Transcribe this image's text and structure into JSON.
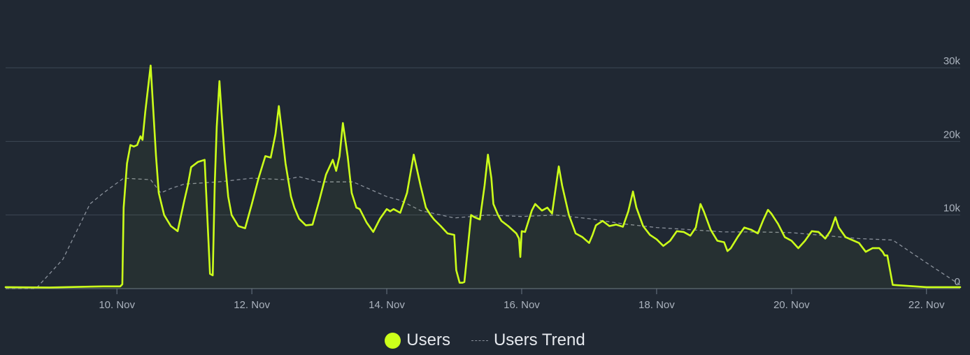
{
  "chart_data": {
    "type": "line",
    "title": "",
    "xlabel": "",
    "ylabel": "",
    "ylim": [
      0,
      30000
    ],
    "y_ticks": [
      {
        "value": 0,
        "label": "0"
      },
      {
        "value": 10000,
        "label": "10k"
      },
      {
        "value": 20000,
        "label": "20k"
      },
      {
        "value": 30000,
        "label": "30k"
      }
    ],
    "x_range_days": [
      8.35,
      22.5
    ],
    "x_ticks": [
      {
        "value": 10,
        "label": "10. Nov"
      },
      {
        "value": 12,
        "label": "12. Nov"
      },
      {
        "value": 14,
        "label": "14. Nov"
      },
      {
        "value": 16,
        "label": "16. Nov"
      },
      {
        "value": 18,
        "label": "18. Nov"
      },
      {
        "value": 20,
        "label": "20. Nov"
      },
      {
        "value": 22,
        "label": "22. Nov"
      }
    ],
    "grid": true,
    "legend_placement": "bottom-center",
    "colors": {
      "users": "#ccff1a",
      "trend": "#8a919b",
      "grid": "#3d4755",
      "axis": "#6b7785"
    },
    "series": [
      {
        "name": "Users",
        "style": "solid",
        "x": [
          8.35,
          9.0,
          9.8,
          10.05,
          10.08,
          10.1,
          10.15,
          10.2,
          10.25,
          10.3,
          10.35,
          10.38,
          10.42,
          10.5,
          10.58,
          10.62,
          10.7,
          10.8,
          10.9,
          11.0,
          11.05,
          11.1,
          11.2,
          11.3,
          11.38,
          11.42,
          11.45,
          11.48,
          11.52,
          11.55,
          11.6,
          11.65,
          11.7,
          11.8,
          11.9,
          12.0,
          12.1,
          12.2,
          12.28,
          12.35,
          12.4,
          12.45,
          12.5,
          12.58,
          12.63,
          12.7,
          12.8,
          12.9,
          13.0,
          13.1,
          13.2,
          13.25,
          13.3,
          13.35,
          13.42,
          13.48,
          13.55,
          13.6,
          13.7,
          13.8,
          13.9,
          14.0,
          14.05,
          14.1,
          14.2,
          14.3,
          14.4,
          14.5,
          14.58,
          14.65,
          14.7,
          14.8,
          14.9,
          15.0,
          15.03,
          15.08,
          15.12,
          15.15,
          15.25,
          15.3,
          15.38,
          15.45,
          15.5,
          15.55,
          15.58,
          15.65,
          15.7,
          15.8,
          15.92,
          15.96,
          15.98,
          16.0,
          16.05,
          16.15,
          16.2,
          16.3,
          16.38,
          16.45,
          16.55,
          16.6,
          16.7,
          16.8,
          16.9,
          17.0,
          17.05,
          17.1,
          17.2,
          17.3,
          17.4,
          17.5,
          17.58,
          17.65,
          17.7,
          17.8,
          17.9,
          18.0,
          18.1,
          18.2,
          18.3,
          18.4,
          18.5,
          18.58,
          18.65,
          18.7,
          18.8,
          18.9,
          19.0,
          19.05,
          19.1,
          19.2,
          19.3,
          19.4,
          19.5,
          19.58,
          19.65,
          19.7,
          19.8,
          19.9,
          20.0,
          20.1,
          20.2,
          20.3,
          20.4,
          20.5,
          20.58,
          20.65,
          20.7,
          20.8,
          20.9,
          21.0,
          21.1,
          21.2,
          21.3,
          21.35,
          21.38,
          21.42,
          21.5,
          22.0,
          22.5
        ],
        "values": [
          200,
          150,
          300,
          300,
          600,
          11000,
          17000,
          19500,
          19300,
          19500,
          20700,
          20200,
          24000,
          30300,
          18000,
          13000,
          10000,
          8500,
          7800,
          12000,
          14000,
          16500,
          17200,
          17500,
          2000,
          1800,
          14000,
          22000,
          28200,
          24000,
          17500,
          12500,
          10000,
          8500,
          8200,
          11500,
          15000,
          18000,
          17800,
          21000,
          24800,
          21000,
          17000,
          12500,
          11000,
          9500,
          8600,
          8700,
          12000,
          15500,
          17500,
          16000,
          18000,
          22500,
          18000,
          13000,
          11000,
          10800,
          9000,
          7700,
          9500,
          10800,
          10500,
          10800,
          10300,
          13000,
          18200,
          14000,
          11000,
          10000,
          9400,
          8500,
          7500,
          7300,
          2500,
          800,
          800,
          900,
          10000,
          9700,
          9400,
          14000,
          18200,
          15000,
          11500,
          10000,
          9200,
          8500,
          7500,
          6800,
          4300,
          7800,
          7700,
          10600,
          11500,
          10600,
          11000,
          10200,
          16600,
          14000,
          10000,
          7500,
          7000,
          6200,
          7300,
          8600,
          9200,
          8500,
          8700,
          8400,
          10500,
          13200,
          11000,
          8500,
          7300,
          6700,
          5800,
          6500,
          7800,
          7700,
          7200,
          8300,
          11500,
          10500,
          8000,
          6500,
          6300,
          5100,
          5500,
          7000,
          8300,
          8000,
          7500,
          9300,
          10700,
          10200,
          8800,
          7000,
          6500,
          5500,
          6500,
          7800,
          7700,
          6800,
          7900,
          9700,
          8300,
          7000,
          6600,
          6200,
          5000,
          5500,
          5500,
          5000,
          4500,
          4500,
          500,
          200,
          200
        ]
      },
      {
        "name": "Users Trend",
        "style": "dashed",
        "x": [
          8.35,
          8.8,
          9.2,
          9.6,
          9.8,
          9.95,
          10.1,
          10.5,
          10.65,
          10.8,
          11.0,
          11.5,
          12.0,
          12.5,
          12.7,
          13.0,
          13.5,
          14.0,
          14.2,
          14.5,
          15.0,
          15.5,
          16.0,
          16.5,
          17.0,
          17.5,
          18.0,
          18.5,
          19.0,
          19.5,
          20.0,
          20.5,
          21.0,
          21.5,
          22.0,
          22.5
        ],
        "values": [
          0,
          0,
          4000,
          11500,
          13000,
          14000,
          15000,
          14800,
          13000,
          13600,
          14200,
          14500,
          15000,
          14800,
          15200,
          14500,
          14500,
          12500,
          12000,
          10600,
          9600,
          10000,
          9800,
          10000,
          9500,
          8800,
          8300,
          8000,
          7700,
          7700,
          7600,
          7200,
          6800,
          6600,
          3500,
          500
        ]
      }
    ]
  },
  "legend": {
    "users_label": "Users",
    "trend_label": "Users Trend"
  }
}
